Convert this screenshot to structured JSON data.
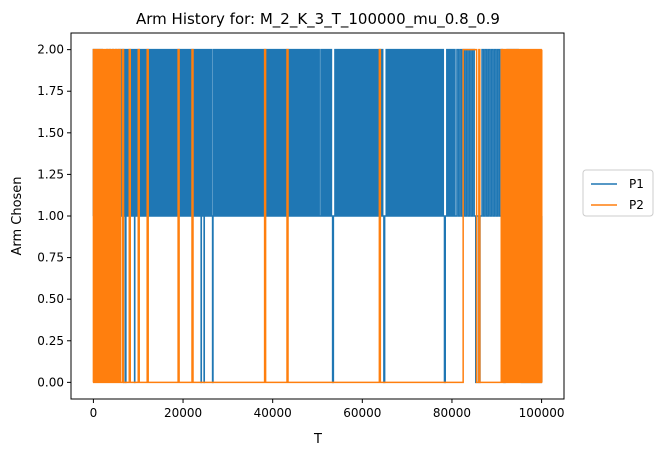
{
  "chart_data": {
    "type": "line",
    "title": "Arm History for: M_2_K_3_T_100000_mu_0.8_0.9",
    "xlabel": "T",
    "ylabel": "Arm Chosen",
    "xlim": [
      -5000,
      105000
    ],
    "ylim": [
      -0.1,
      2.1
    ],
    "xticks": [
      0,
      20000,
      40000,
      60000,
      80000,
      100000
    ],
    "xtick_labels": [
      "0",
      "20000",
      "40000",
      "60000",
      "80000",
      "100000"
    ],
    "yticks": [
      0.0,
      0.25,
      0.5,
      0.75,
      1.0,
      1.25,
      1.5,
      1.75,
      2.0
    ],
    "ytick_labels": [
      "0.00",
      "0.25",
      "0.50",
      "0.75",
      "1.00",
      "1.25",
      "1.50",
      "1.75",
      "2.00"
    ],
    "grid": false,
    "legend_position": "right",
    "series": [
      {
        "name": "P1",
        "color": "#1f77b4",
        "base_value": 1,
        "dense_to_2": [
          [
            0,
            2000
          ],
          [
            6000,
            19500
          ],
          [
            19500,
            95000
          ]
        ],
        "spikes_to_2": [
          3000,
          3600,
          4300,
          5000,
          5600
        ],
        "drops_to_0": [
          6800,
          7200,
          9200,
          24000,
          24700,
          26600,
          53200,
          64700,
          78300,
          85000,
          85700,
          91300,
          91900
        ],
        "dense_zero_to_2": [
          [
            96000,
            100000
          ]
        ],
        "final_value": 1
      },
      {
        "name": "P2",
        "color": "#ff7f0e",
        "base_value": 0,
        "dense_0_2": [
          [
            0,
            6000
          ],
          [
            91000,
            100000
          ]
        ],
        "spikes_to_2": [
          6500,
          8000,
          10000,
          12000,
          18900,
          22000,
          38200,
          43200,
          63800,
          86000
        ],
        "plateaus_at_2": [
          [
            82500,
            85500
          ]
        ],
        "final_value": 0
      }
    ]
  }
}
